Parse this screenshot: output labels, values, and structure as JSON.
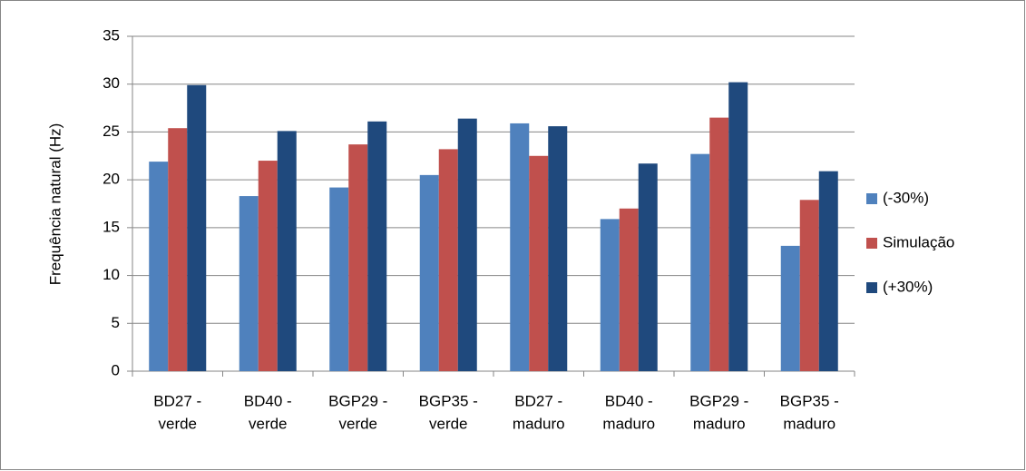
{
  "chart_data": {
    "type": "bar",
    "ylabel": "Frequência natural (Hz)",
    "categories": [
      [
        "BD27 -",
        "verde"
      ],
      [
        "BD40 -",
        "verde"
      ],
      [
        "BGP29 -",
        "verde"
      ],
      [
        "BGP35 -",
        "verde"
      ],
      [
        "BD27 -",
        "maduro"
      ],
      [
        "BD40 -",
        "maduro"
      ],
      [
        "BGP29 -",
        "maduro"
      ],
      [
        "BGP35 -",
        "maduro"
      ]
    ],
    "series": [
      {
        "name": "(-30%)",
        "color": "#4f81bd",
        "values": [
          21.9,
          18.3,
          19.2,
          20.5,
          25.9,
          15.9,
          22.7,
          13.1
        ]
      },
      {
        "name": "Simulação",
        "color": "#c0504d",
        "values": [
          25.4,
          22.0,
          23.7,
          23.2,
          22.5,
          17.0,
          26.5,
          17.9
        ]
      },
      {
        "name": "(+30%)",
        "color": "#1f497d",
        "values": [
          29.9,
          25.1,
          26.1,
          26.4,
          25.6,
          21.7,
          30.2,
          20.9
        ]
      }
    ],
    "ylim": [
      0,
      35
    ],
    "yticks": [
      0,
      5,
      10,
      15,
      20,
      25,
      30,
      35
    ],
    "grid": true,
    "legend": "right"
  }
}
